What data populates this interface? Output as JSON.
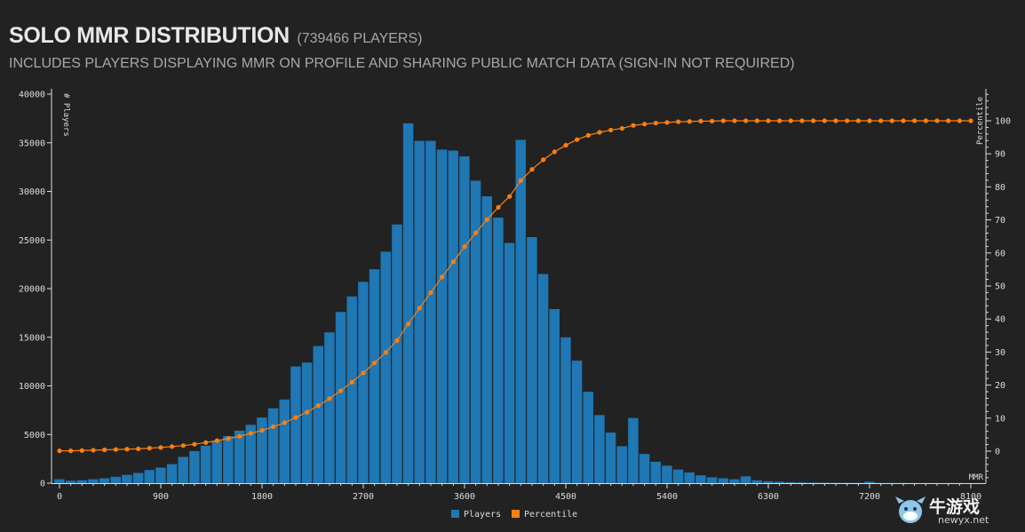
{
  "header": {
    "title": "SOLO MMR DISTRIBUTION",
    "player_count": "(739466 PLAYERS)",
    "subtitle": "INCLUDES PLAYERS DISPLAYING MMR ON PROFILE AND SHARING PUBLIC MATCH DATA (SIGN-IN NOT REQUIRED)"
  },
  "chart_data": {
    "type": "bar",
    "x_label": "MMR",
    "y_left_label": "# Players",
    "y_right_label": "Percentile",
    "x_ticks": [
      0,
      900,
      1800,
      2700,
      3600,
      4500,
      5400,
      6300,
      7200,
      8100
    ],
    "y_left_ticks": [
      0,
      5000,
      10000,
      15000,
      20000,
      25000,
      30000,
      35000,
      40000
    ],
    "y_right_ticks": [
      0,
      10,
      20,
      30,
      40,
      50,
      60,
      70,
      80,
      90,
      100
    ],
    "x_domain": [
      0,
      8100
    ],
    "y_left_range": [
      0,
      40000
    ],
    "y_right_range": [
      -10,
      108
    ],
    "bin_width": 100,
    "x": [
      0,
      100,
      200,
      300,
      400,
      500,
      600,
      700,
      800,
      900,
      1000,
      1100,
      1200,
      1300,
      1400,
      1500,
      1600,
      1700,
      1800,
      1900,
      2000,
      2100,
      2200,
      2300,
      2400,
      2500,
      2600,
      2700,
      2800,
      2900,
      3000,
      3100,
      3200,
      3300,
      3400,
      3500,
      3600,
      3700,
      3800,
      3900,
      4000,
      4100,
      4200,
      4300,
      4400,
      4500,
      4600,
      4700,
      4800,
      4900,
      5000,
      5100,
      5200,
      5300,
      5400,
      5500,
      5600,
      5700,
      5800,
      5900,
      6000,
      6100,
      6200,
      6300,
      6400,
      6500,
      6600,
      6700,
      6800,
      6900,
      7000,
      7100,
      7200,
      7300,
      7400,
      7500,
      7600,
      7700,
      7800,
      7900,
      8000,
      8100
    ],
    "series": [
      {
        "name": "Players",
        "color": "#1f77b4",
        "values": [
          400,
          250,
          300,
          400,
          500,
          650,
          850,
          1050,
          1350,
          1600,
          1950,
          2700,
          3300,
          3850,
          4350,
          4850,
          5400,
          6000,
          6750,
          7700,
          8600,
          12000,
          12400,
          14100,
          15500,
          17600,
          19200,
          20700,
          22000,
          23800,
          26600,
          37000,
          35200,
          35200,
          34300,
          34200,
          33600,
          31100,
          29500,
          27300,
          24700,
          35300,
          25300,
          21500,
          17900,
          15000,
          12600,
          9400,
          7000,
          5200,
          3800,
          6700,
          3000,
          2200,
          1800,
          1400,
          1100,
          800,
          600,
          500,
          400,
          700,
          300,
          200,
          150,
          100,
          80,
          60,
          50,
          40,
          40,
          30,
          150,
          20,
          20,
          20,
          15,
          15,
          10,
          10,
          10,
          10
        ]
      },
      {
        "name": "Percentile",
        "color": "#ff7f0e",
        "values": [
          0.1,
          0.1,
          0.2,
          0.3,
          0.4,
          0.5,
          0.6,
          0.7,
          0.9,
          1.1,
          1.4,
          1.7,
          2.1,
          2.6,
          3.2,
          3.8,
          4.5,
          5.4,
          6.3,
          7.4,
          8.6,
          10.2,
          11.8,
          13.8,
          15.9,
          18.3,
          20.9,
          23.7,
          26.7,
          29.9,
          33.5,
          38.5,
          43.3,
          48.0,
          52.7,
          57.3,
          61.9,
          66.1,
          70.1,
          73.8,
          77.1,
          81.9,
          85.3,
          88.2,
          90.6,
          92.6,
          94.3,
          95.6,
          96.5,
          97.2,
          97.7,
          98.6,
          99.0,
          99.3,
          99.5,
          99.7,
          99.8,
          99.9,
          99.9,
          100,
          100,
          100,
          100,
          100,
          100,
          100,
          100,
          100,
          100,
          100,
          100,
          100,
          100,
          100,
          100,
          100,
          100,
          100,
          100,
          100,
          100,
          100
        ]
      }
    ],
    "legend": [
      "Players",
      "Percentile"
    ],
    "legend_position": "bottom-center",
    "grid": false
  },
  "watermark": {
    "text": "牛游戏",
    "sub": "newyx.net"
  }
}
